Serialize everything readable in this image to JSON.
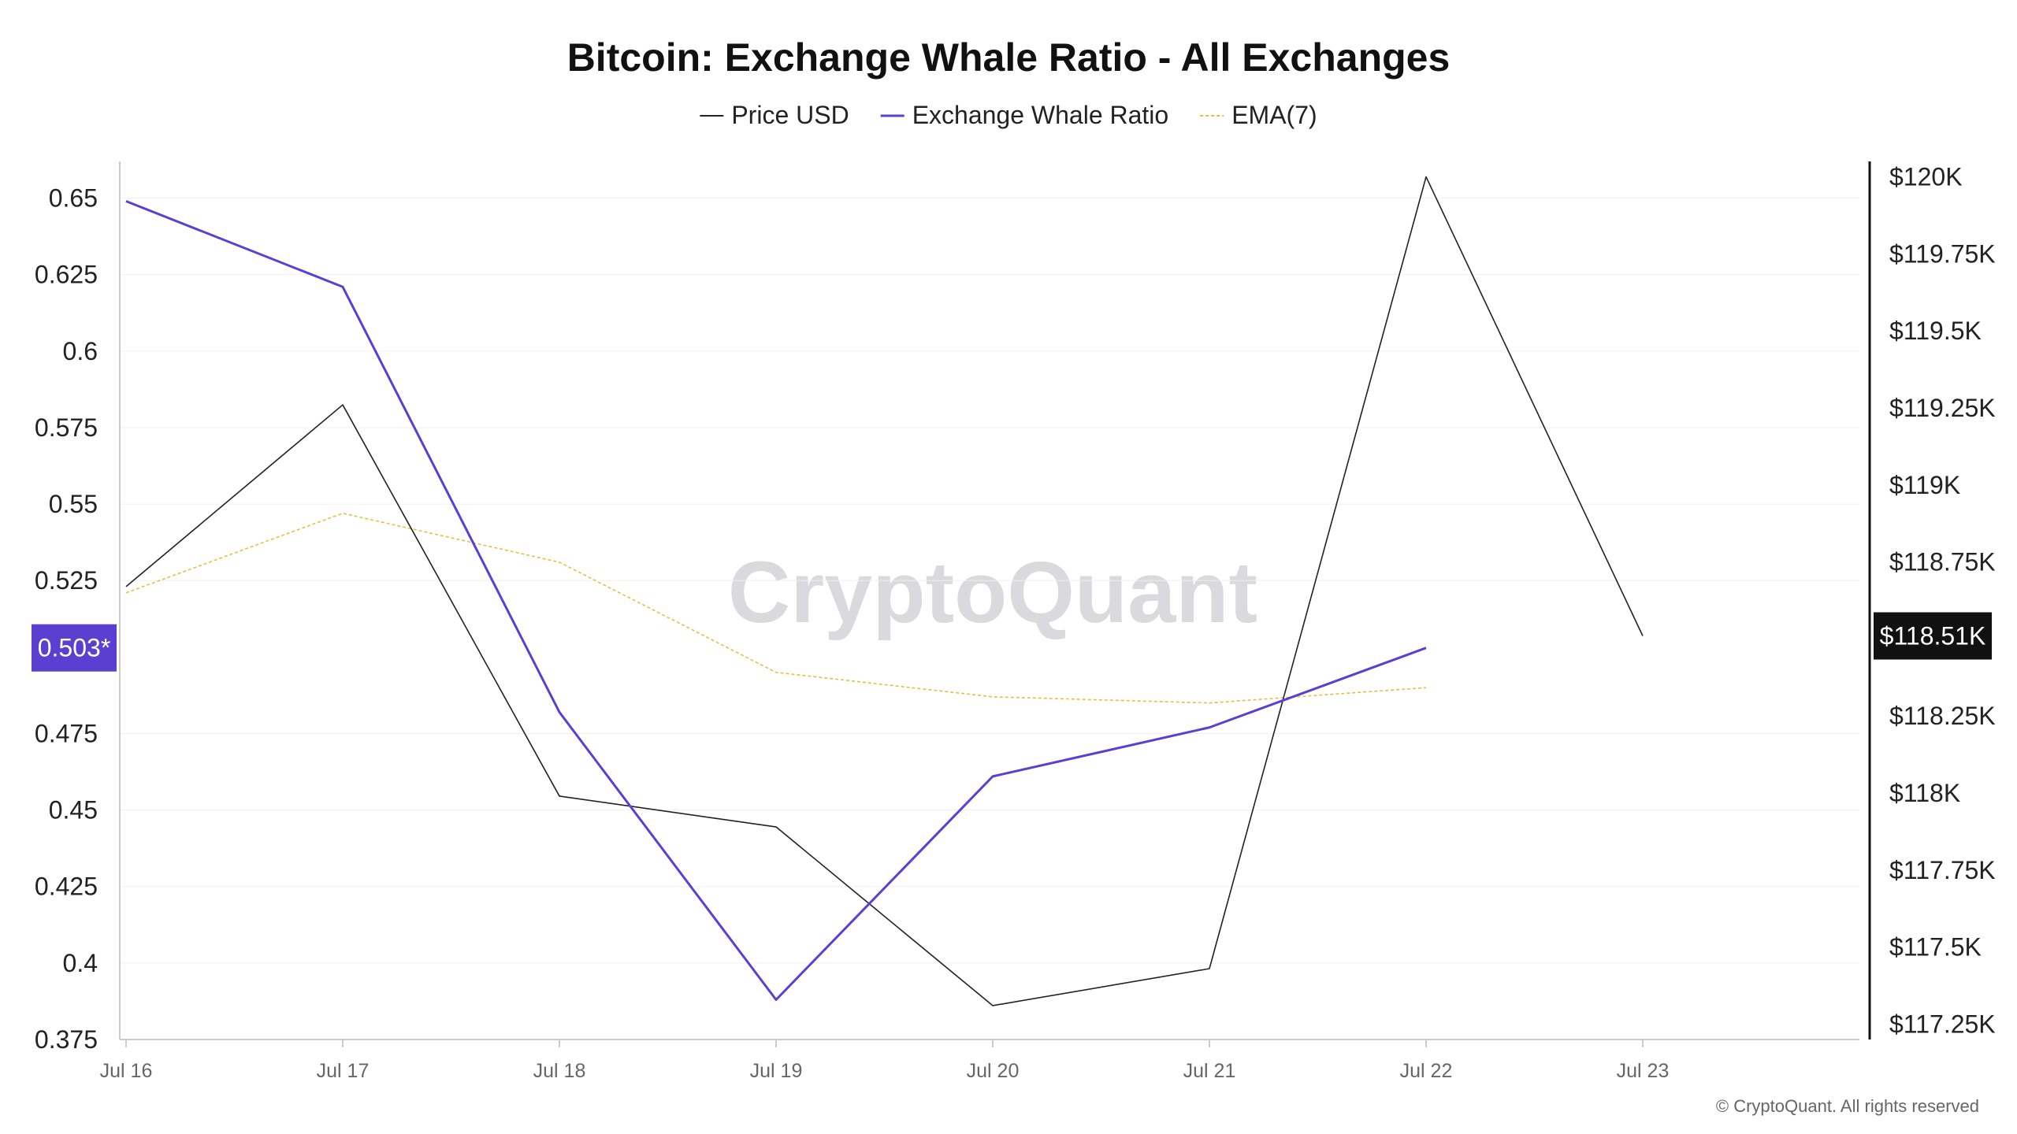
{
  "chart_data": {
    "type": "line",
    "title": "Bitcoin: Exchange Whale Ratio - All Exchanges",
    "categories": [
      "Jul 16",
      "Jul 17",
      "Jul 18",
      "Jul 19",
      "Jul 20",
      "Jul 21",
      "Jul 22",
      "Jul 23"
    ],
    "left_axis": {
      "ylim": [
        0.375,
        0.662
      ],
      "ticks": [
        "0.65",
        "0.625",
        "0.6",
        "0.575",
        "0.55",
        "0.525",
        "0.475",
        "0.45",
        "0.425",
        "0.4",
        "0.375"
      ],
      "tick_values": [
        0.65,
        0.625,
        0.6,
        0.575,
        0.55,
        0.525,
        0.475,
        0.45,
        0.425,
        0.4,
        0.375
      ]
    },
    "right_axis": {
      "ylim": [
        117200,
        120050
      ],
      "ticks": [
        "$120K",
        "$119.75K",
        "$119.5K",
        "$119.25K",
        "$119K",
        "$118.75K",
        "$118.25K",
        "$118K",
        "$117.75K",
        "$117.5K",
        "$117.25K"
      ],
      "tick_values": [
        120000,
        119750,
        119500,
        119250,
        119000,
        118750,
        118250,
        118000,
        117750,
        117500,
        117250
      ]
    },
    "series": [
      {
        "name": "Price USD",
        "axis": "right",
        "color": "#222222",
        "values": [
          118670,
          119260,
          117990,
          117890,
          117310,
          117430,
          120000,
          118510
        ]
      },
      {
        "name": "Exchange Whale Ratio",
        "axis": "left",
        "color": "#5b3fd0",
        "values": [
          0.649,
          0.621,
          0.482,
          0.388,
          0.461,
          0.477,
          0.503,
          null
        ]
      },
      {
        "name": "EMA(7)",
        "axis": "left",
        "color": "#e2c044",
        "dashed": true,
        "values": [
          0.521,
          0.547,
          0.531,
          0.495,
          0.487,
          0.485,
          0.49,
          null
        ]
      }
    ],
    "current_left_label": "0.503*",
    "current_right_label": "$118.51K",
    "current_left_value": 0.503,
    "current_right_value": 118510,
    "left_badge_color": "#5b3fd0",
    "right_badge_color": "#111111",
    "legend_placement": "top-center",
    "grid": true
  },
  "watermark": "CryptoQuant",
  "copyright": "© CryptoQuant. All rights reserved"
}
